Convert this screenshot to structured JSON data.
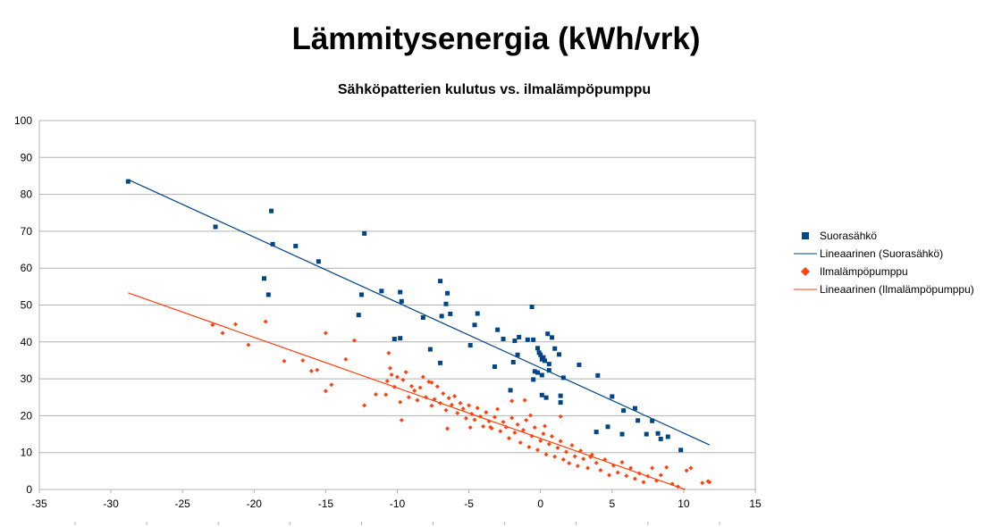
{
  "chart_data": {
    "type": "scatter",
    "title": "Lämmitysenergia (kWh/vrk)",
    "subtitle": "Sähköpatterien kulutus vs. ilmalämpöpumppu",
    "xlabel": "",
    "ylabel": "",
    "xlim": [
      -35,
      15
    ],
    "ylim": [
      0,
      100
    ],
    "x_ticks": [
      -35,
      -30,
      -25,
      -20,
      -15,
      -10,
      -5,
      0,
      5,
      10,
      15
    ],
    "y_ticks": [
      0,
      10,
      20,
      30,
      40,
      50,
      60,
      70,
      80,
      90,
      100
    ],
    "grid": "horizontal",
    "legend_position": "right",
    "series": [
      {
        "name": "Suorasähkö",
        "kind": "points",
        "marker": "square",
        "color": "#004586",
        "points": [
          [
            -28.8,
            83.5
          ],
          [
            -22.7,
            71.2
          ],
          [
            -18.8,
            75.5
          ],
          [
            -18.7,
            66.5
          ],
          [
            -17.1,
            66.0
          ],
          [
            -15.5,
            61.8
          ],
          [
            -19.3,
            57.2
          ],
          [
            -19.0,
            52.8
          ],
          [
            -12.3,
            69.4
          ],
          [
            -12.5,
            52.8
          ],
          [
            -12.7,
            47.3
          ],
          [
            -11.1,
            53.8
          ],
          [
            -9.8,
            53.5
          ],
          [
            -9.7,
            51.0
          ],
          [
            -8.2,
            46.6
          ],
          [
            -7.0,
            56.5
          ],
          [
            -6.5,
            53.2
          ],
          [
            -6.6,
            50.3
          ],
          [
            -6.9,
            47.0
          ],
          [
            -6.3,
            47.6
          ],
          [
            -4.4,
            47.7
          ],
          [
            -4.6,
            44.6
          ],
          [
            -4.9,
            39.1
          ],
          [
            -10.2,
            40.8
          ],
          [
            -9.8,
            41.0
          ],
          [
            -7.7,
            38.0
          ],
          [
            -7.0,
            34.3
          ],
          [
            -3.0,
            43.3
          ],
          [
            -2.6,
            40.8
          ],
          [
            -3.2,
            33.3
          ],
          [
            -1.8,
            40.3
          ],
          [
            -1.5,
            41.3
          ],
          [
            -0.9,
            40.6
          ],
          [
            -0.5,
            40.6
          ],
          [
            -0.6,
            49.5
          ],
          [
            0.5,
            42.2
          ],
          [
            0.8,
            41.2
          ],
          [
            1.0,
            38.2
          ],
          [
            1.3,
            36.6
          ],
          [
            -1.6,
            36.5
          ],
          [
            -1.9,
            34.5
          ],
          [
            -0.2,
            38.3
          ],
          [
            -0.1,
            37.1
          ],
          [
            0.0,
            36.5
          ],
          [
            0.1,
            35.3
          ],
          [
            0.2,
            35.8
          ],
          [
            0.3,
            34.9
          ],
          [
            0.6,
            34.0
          ],
          [
            -0.4,
            32.0
          ],
          [
            -0.2,
            31.7
          ],
          [
            0.1,
            31.0
          ],
          [
            0.6,
            32.3
          ],
          [
            -0.5,
            29.8
          ],
          [
            1.6,
            30.3
          ],
          [
            -2.1,
            26.9
          ],
          [
            0.1,
            25.6
          ],
          [
            0.4,
            24.9
          ],
          [
            1.4,
            25.4
          ],
          [
            1.4,
            23.6
          ],
          [
            2.7,
            33.8
          ],
          [
            4.0,
            30.9
          ],
          [
            5.0,
            25.2
          ],
          [
            5.8,
            21.4
          ],
          [
            3.9,
            15.6
          ],
          [
            4.7,
            17.0
          ],
          [
            5.7,
            15.0
          ],
          [
            6.6,
            22.0
          ],
          [
            6.8,
            18.7
          ],
          [
            7.4,
            15.0
          ],
          [
            7.8,
            18.6
          ],
          [
            8.2,
            15.2
          ],
          [
            8.4,
            13.7
          ],
          [
            8.9,
            14.3
          ],
          [
            9.8,
            10.7
          ]
        ]
      },
      {
        "name": "Lineaarinen (Suorasähkö)",
        "kind": "line",
        "color": "#004586",
        "points": [
          [
            -28.8,
            84.0
          ],
          [
            11.8,
            12.1
          ]
        ]
      },
      {
        "name": "Ilmalämpöpumppu",
        "kind": "points",
        "marker": "diamond",
        "color": "#ff420e",
        "points": [
          [
            -22.9,
            44.6
          ],
          [
            -22.2,
            42.4
          ],
          [
            -21.3,
            44.8
          ],
          [
            -20.4,
            39.2
          ],
          [
            -19.2,
            45.5
          ],
          [
            -17.9,
            34.8
          ],
          [
            -16.6,
            35.0
          ],
          [
            -16.0,
            32.1
          ],
          [
            -15.6,
            32.4
          ],
          [
            -15.0,
            42.4
          ],
          [
            -15.0,
            26.7
          ],
          [
            -14.6,
            28.4
          ],
          [
            -13.6,
            35.3
          ],
          [
            -13.0,
            40.4
          ],
          [
            -12.3,
            22.8
          ],
          [
            -11.5,
            25.8
          ],
          [
            -10.8,
            25.7
          ],
          [
            -10.7,
            29.4
          ],
          [
            -10.5,
            32.9
          ],
          [
            -10.4,
            31.1
          ],
          [
            -10.2,
            27.8
          ],
          [
            -10.0,
            30.5
          ],
          [
            -9.8,
            23.7
          ],
          [
            -9.6,
            29.7
          ],
          [
            -9.4,
            31.8
          ],
          [
            -9.2,
            25.0
          ],
          [
            -9.0,
            28.0
          ],
          [
            -8.8,
            26.8
          ],
          [
            -8.6,
            24.2
          ],
          [
            -8.4,
            27.6
          ],
          [
            -8.2,
            30.5
          ],
          [
            -8.0,
            25.0
          ],
          [
            -7.8,
            29.2
          ],
          [
            -7.6,
            22.7
          ],
          [
            -7.4,
            24.5
          ],
          [
            -7.2,
            27.9
          ],
          [
            -7.0,
            23.4
          ],
          [
            -6.8,
            26.0
          ],
          [
            -6.6,
            21.5
          ],
          [
            -6.4,
            24.8
          ],
          [
            -6.2,
            22.9
          ],
          [
            -6.0,
            25.3
          ],
          [
            -5.8,
            20.7
          ],
          [
            -5.6,
            23.4
          ],
          [
            -5.4,
            21.9
          ],
          [
            -5.2,
            19.3
          ],
          [
            -5.0,
            22.8
          ],
          [
            -4.8,
            20.5
          ],
          [
            -4.6,
            18.9
          ],
          [
            -4.4,
            22.1
          ],
          [
            -4.2,
            19.8
          ],
          [
            -4.0,
            17.1
          ],
          [
            -3.8,
            20.9
          ],
          [
            -3.6,
            18.5
          ],
          [
            -3.4,
            16.6
          ],
          [
            -3.2,
            19.6
          ],
          [
            -3.0,
            21.8
          ],
          [
            -2.8,
            15.8
          ],
          [
            -2.6,
            18.3
          ],
          [
            -2.4,
            16.9
          ],
          [
            -2.2,
            13.9
          ],
          [
            -2.0,
            19.4
          ],
          [
            -1.8,
            15.4
          ],
          [
            -1.6,
            17.6
          ],
          [
            -1.4,
            12.7
          ],
          [
            -1.2,
            16.1
          ],
          [
            -1.0,
            18.8
          ],
          [
            -0.8,
            11.5
          ],
          [
            -0.6,
            14.5
          ],
          [
            -0.4,
            16.8
          ],
          [
            -0.2,
            10.7
          ],
          [
            0.0,
            13.2
          ],
          [
            0.2,
            15.1
          ],
          [
            0.4,
            9.5
          ],
          [
            0.6,
            12.3
          ],
          [
            0.8,
            14.4
          ],
          [
            1.0,
            8.9
          ],
          [
            1.2,
            11.3
          ],
          [
            1.4,
            13.1
          ],
          [
            1.6,
            8.1
          ],
          [
            1.8,
            10.2
          ],
          [
            2.0,
            7.1
          ],
          [
            2.2,
            12.0
          ],
          [
            2.4,
            9.0
          ],
          [
            2.6,
            6.4
          ],
          [
            2.8,
            10.5
          ],
          [
            3.0,
            8.3
          ],
          [
            3.3,
            5.8
          ],
          [
            3.6,
            9.4
          ],
          [
            3.9,
            7.2
          ],
          [
            4.2,
            5.2
          ],
          [
            4.5,
            8.1
          ],
          [
            4.8,
            3.9
          ],
          [
            5.1,
            6.5
          ],
          [
            5.4,
            4.6
          ],
          [
            5.7,
            7.4
          ],
          [
            6.0,
            3.7
          ],
          [
            6.3,
            5.8
          ],
          [
            6.6,
            2.9
          ],
          [
            6.9,
            4.4
          ],
          [
            7.2,
            2.0
          ],
          [
            7.5,
            3.6
          ],
          [
            7.8,
            5.8
          ],
          [
            8.1,
            2.4
          ],
          [
            8.4,
            3.9
          ],
          [
            8.8,
            6.0
          ],
          [
            9.2,
            1.5
          ],
          [
            9.6,
            0.8
          ],
          [
            10.2,
            5.1
          ],
          [
            10.5,
            5.8
          ],
          [
            11.3,
            1.8
          ],
          [
            11.7,
            2.2
          ],
          [
            11.8,
            2.0
          ],
          [
            -10.6,
            37.0
          ],
          [
            -9.7,
            18.8
          ],
          [
            -6.5,
            16.5
          ],
          [
            -4.9,
            16.8
          ],
          [
            -2.0,
            24.0
          ],
          [
            -0.7,
            20.1
          ],
          [
            1.4,
            19.8
          ],
          [
            3.5,
            8.8
          ],
          [
            -7.6,
            29.0
          ],
          [
            -3.5,
            16.9
          ],
          [
            -1.1,
            24.2
          ],
          [
            0.3,
            17.2
          ]
        ]
      },
      {
        "name": "Lineaarinen (Ilmalämpöpumppu)",
        "kind": "line",
        "color": "#ff420e",
        "points": [
          [
            -28.8,
            53.3
          ],
          [
            10.1,
            0.0
          ]
        ]
      }
    ]
  }
}
